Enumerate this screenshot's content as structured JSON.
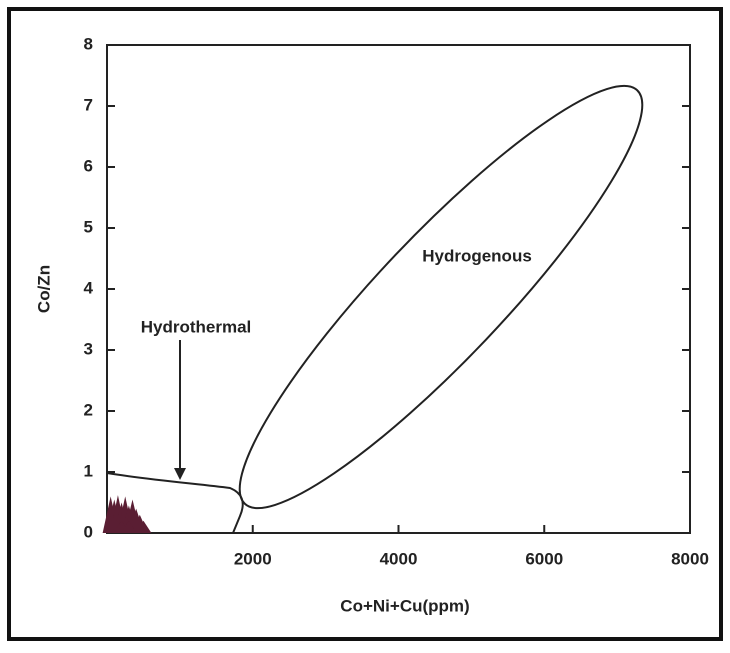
{
  "chart_data": {
    "type": "scatter",
    "x_label": "Co+Ni+Cu(ppm)",
    "y_label": "Co/Zn",
    "annotations": [
      "Hydrogenous",
      "Hydrothermal"
    ],
    "color": "#5a1e33",
    "x": [
      50,
      100,
      150,
      200,
      250,
      300,
      350,
      400,
      450,
      500,
      100,
      200,
      300,
      150,
      400,
      50
    ],
    "values": [
      0.6,
      0.55,
      0.62,
      0.5,
      0.6,
      0.45,
      0.55,
      0.4,
      0.3,
      0.2,
      0.3,
      0.2,
      0.2,
      0.1,
      0.1,
      0.1
    ],
    "xlim": [
      0,
      8000
    ],
    "ylim": [
      0,
      8
    ],
    "xticks": [
      2000,
      4000,
      6000,
      8000
    ],
    "yticks": [
      0,
      1,
      2,
      3,
      4,
      5,
      6,
      7,
      8
    ]
  }
}
